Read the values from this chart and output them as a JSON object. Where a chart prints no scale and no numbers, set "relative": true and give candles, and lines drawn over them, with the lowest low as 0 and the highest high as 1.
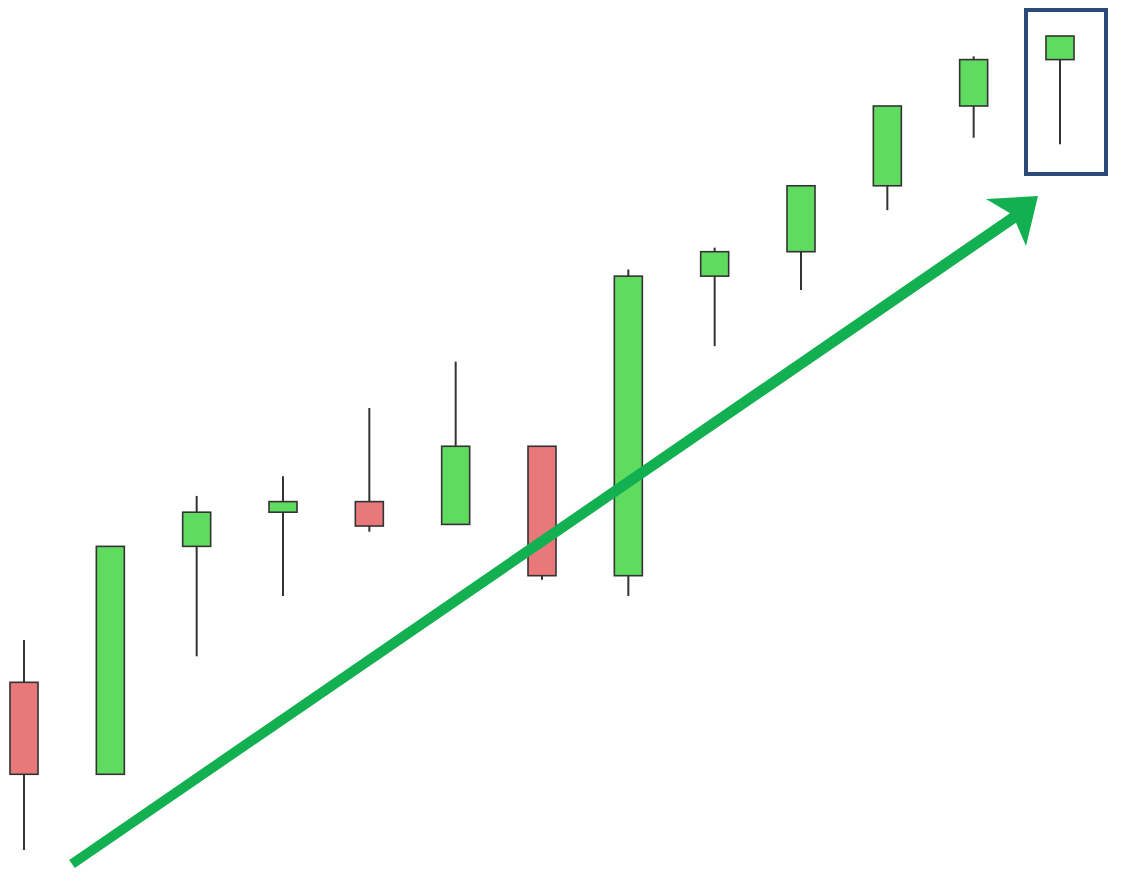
{
  "chart_data": {
    "type": "candlestick",
    "relative": true,
    "categories": [
      null,
      null,
      null,
      null,
      null,
      null,
      null,
      null,
      null,
      null,
      null,
      null,
      null
    ],
    "ohlc": [
      [
        0.206,
        0.258,
        0,
        0.093
      ],
      [
        0.093,
        0.373,
        0.093,
        0.373
      ],
      [
        0.373,
        0.435,
        0.238,
        0.415
      ],
      [
        0.415,
        0.459,
        0.312,
        0.428
      ],
      [
        0.428,
        0.543,
        0.391,
        0.398
      ],
      [
        0.4,
        0.6,
        0.4,
        0.496
      ],
      [
        0.496,
        0.496,
        0.332,
        0.337
      ],
      [
        0.337,
        0.713,
        0.312,
        0.705
      ],
      [
        0.705,
        0.74,
        0.619,
        0.735
      ],
      [
        0.735,
        0.816,
        0.688,
        0.816
      ],
      [
        0.816,
        0.914,
        0.786,
        0.914
      ],
      [
        0.914,
        0.975,
        0.875,
        0.971
      ],
      [
        0.971,
        1,
        0.867,
        1
      ]
    ],
    "colors": [
      "#e8787a",
      "#5fdc5f",
      "#5fdc5f",
      "#5fdc5f",
      "#e8787a",
      "#5fdc5f",
      "#e8787a",
      "#5fdc5f",
      "#5fdc5f",
      "#5fdc5f",
      "#5fdc5f",
      "#5fdc5f",
      "#5fdc5f"
    ]
  }
}
